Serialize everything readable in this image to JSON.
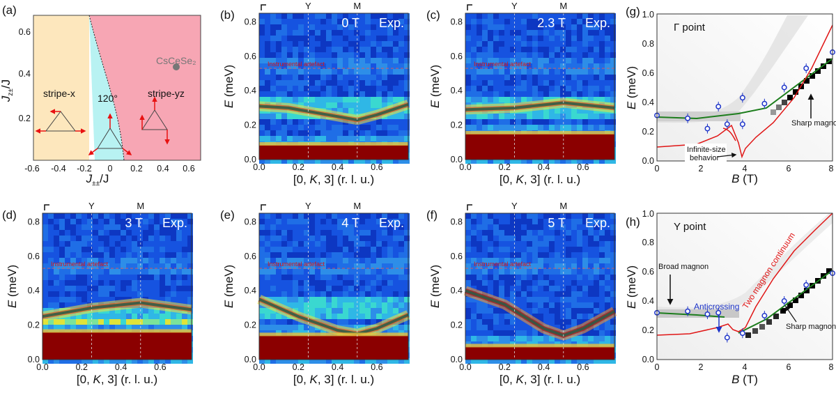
{
  "labels": {
    "a": "(a)",
    "b": "(b)",
    "c": "(c)",
    "d": "(d)",
    "e": "(e)",
    "f": "(f)",
    "g": "(g)",
    "h": "(h)"
  },
  "colors": {
    "stripe_x": "#fde7bd",
    "spiral": "#b8f2f2",
    "stripe_yz": "#f7a6b4",
    "arrow": "#e81111",
    "heat_low": "#0a1f9c",
    "heat_high": "#8b0000",
    "magnon_green": "#1c7d1c",
    "continuum_red": "#e01515",
    "data_blue": "#1d34c9"
  },
  "panel_a": {
    "x_label_main": "J",
    "x_label_sub": "±±",
    "x_label_tail": "/J",
    "y_label_main": "J",
    "y_label_sub": "z±",
    "y_label_tail": "/J",
    "x_ticks": [
      "-0.6",
      "-0.4",
      "-0.2",
      "0",
      "0.2",
      "0.4",
      "0.6"
    ],
    "y_ticks": [
      "0.2",
      "0.4",
      "0.6"
    ],
    "phase_stripe_x": "stripe-x",
    "phase_120": "120°",
    "phase_stripe_yz": "stripe-yz",
    "material": "CsCeSe₂"
  },
  "heatmaps": {
    "x_label_parts": [
      "[0, ",
      "K",
      ", 3] (r. l. u.)"
    ],
    "y_label_parts": [
      "E",
      " (meV)"
    ],
    "x_ticks": [
      "0.0",
      "0.2",
      "0.4",
      "0.6"
    ],
    "y_ticks": [
      "0.0",
      "0.2",
      "0.4",
      "0.6",
      "0.8"
    ],
    "high_sym": [
      "Y",
      "M"
    ],
    "artefact": "Instrumental artefact",
    "exp": "Exp.",
    "b_field": "0 T",
    "c_field": "2.3 T",
    "d_field": "3 T",
    "e_field": "4 T",
    "f_field": "5 T"
  },
  "panel_g": {
    "title": "Γ point",
    "x_label_main": "B",
    " x_label_unit": "(T)",
    "x_label_unit": " (T)",
    "y_label_main": "E",
    "y_label_unit": " (meV)",
    "x_ticks": [
      "0",
      "2",
      "4",
      "6",
      "8"
    ],
    "y_ticks": [
      "0.0",
      "0.2",
      "0.4",
      "0.6",
      "0.8",
      "1.0"
    ],
    "sharp": "Sharp magnon",
    "infinite_1": "Infinite-size",
    "infinite_2": "behavior"
  },
  "panel_h": {
    "title": "Y point",
    "broad": "Broad magnon",
    "anticrossing": "Anticrossing",
    "continuum": "Two magnon continuum",
    "sharp": "Sharp magnon"
  },
  "chart_data": [
    {
      "type": "scatter",
      "title": "Γ point",
      "xlabel": "B (T)",
      "ylabel": "E (meV)",
      "xlim": [
        0,
        8
      ],
      "ylim": [
        0,
        1.0
      ],
      "x": [
        0,
        1.4,
        2.3,
        2.8,
        3.2,
        3.9,
        3.9,
        4.9,
        5.8,
        6.8,
        8.0
      ],
      "y": [
        0.31,
        0.29,
        0.22,
        0.37,
        0.25,
        0.43,
        0.25,
        0.39,
        0.5,
        0.63,
        0.74
      ]
    },
    {
      "type": "scatter",
      "title": "Y point",
      "xlabel": "B (T)",
      "ylabel": "E (meV)",
      "xlim": [
        0,
        8
      ],
      "ylim": [
        0,
        1.0
      ],
      "x": [
        0,
        1.4,
        2.3,
        2.8,
        3.2,
        3.9,
        4.9,
        5.8,
        6.8,
        8.0
      ],
      "y": [
        0.32,
        0.33,
        0.31,
        0.32,
        0.15,
        0.18,
        0.3,
        0.4,
        0.51,
        0.59
      ]
    }
  ]
}
